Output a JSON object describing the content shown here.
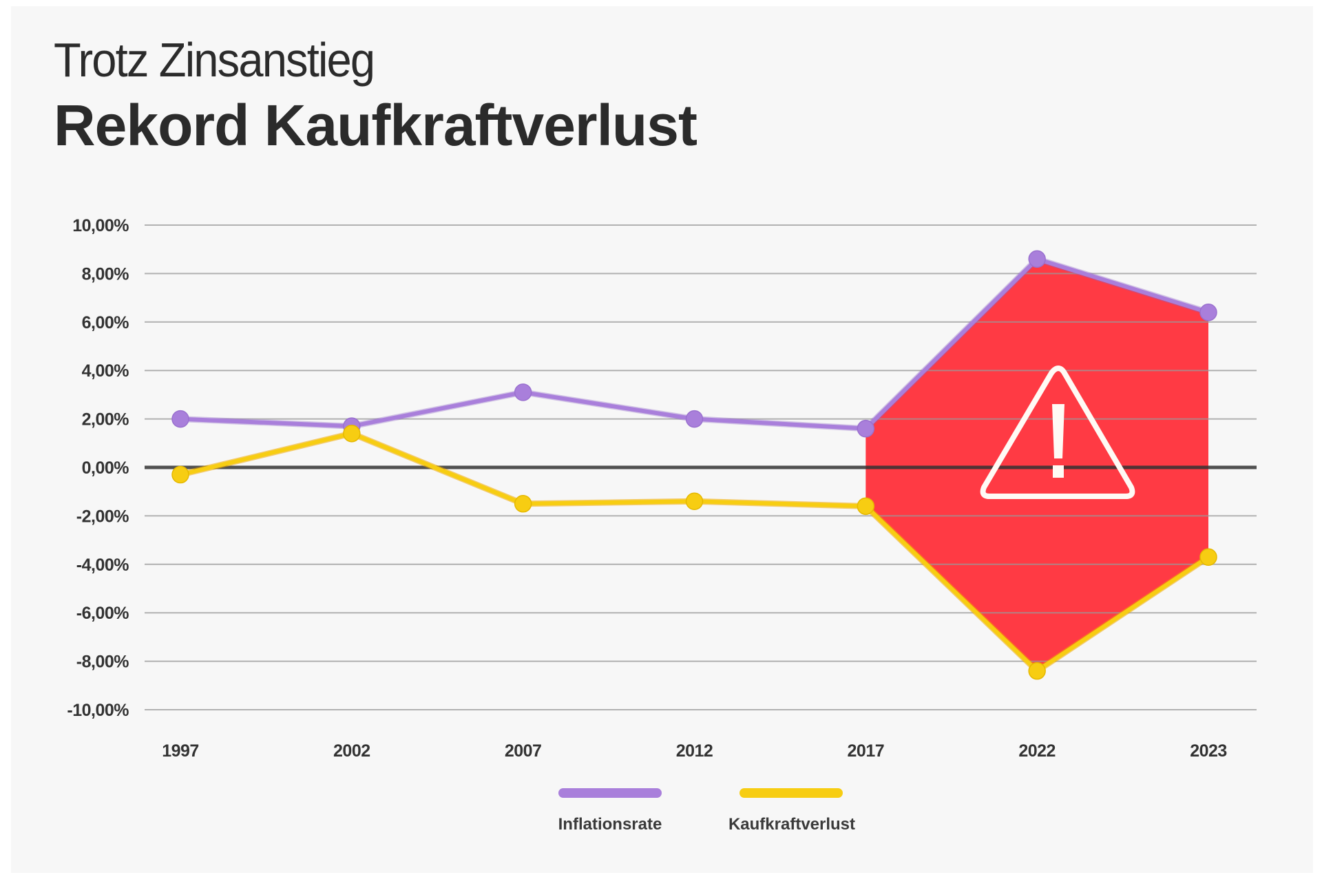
{
  "header": {
    "subtitle": "Trotz Zinsanstieg",
    "title": "Rekord Kaufkraftverlust"
  },
  "colors": {
    "inflation": "#a97fdb",
    "kaufkraft": "#f7cd12",
    "kaufkraft_edge": "#f0a800",
    "warning_area": "#ff3a44",
    "zero_line": "#333333",
    "grid": "#9a9a9a"
  },
  "icons": {
    "warning": "warning-triangle-icon"
  },
  "chart_data": {
    "type": "line",
    "title": "Rekord Kaufkraftverlust",
    "subtitle": "Trotz Zinsanstieg",
    "xlabel": "",
    "ylabel": "",
    "categories": [
      "1997",
      "2002",
      "2007",
      "2012",
      "2017",
      "2022",
      "2023"
    ],
    "series": [
      {
        "name": "Inflationsrate",
        "values": [
          2.0,
          1.7,
          3.1,
          2.0,
          1.6,
          8.6,
          6.4
        ]
      },
      {
        "name": "Kaufkraftverlust",
        "values": [
          -0.3,
          1.4,
          -1.5,
          -1.4,
          -1.6,
          -8.4,
          -3.7
        ]
      }
    ],
    "ylim": [
      -10,
      10
    ],
    "yticks": [
      10,
      8,
      6,
      4,
      2,
      0,
      -2,
      -4,
      -6,
      -8,
      -10
    ],
    "ytick_labels": [
      "10,00%",
      "8,00%",
      "6,00%",
      "4,00%",
      "2,00%",
      "0,00%",
      "-2,00%",
      "-4,00%",
      "-6,00%",
      "-8,00%",
      "-10,00%"
    ],
    "grid": true,
    "legend_position": "bottom-center",
    "highlight": {
      "from_category": "2017",
      "to_category": "2023",
      "annotation": "warning-triangle"
    }
  }
}
